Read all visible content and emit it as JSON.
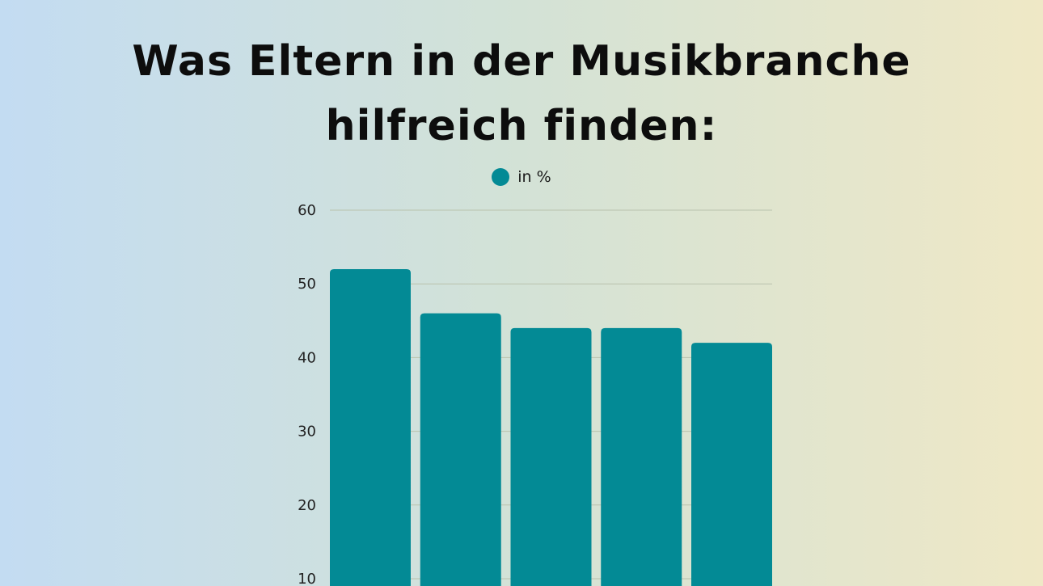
{
  "colors": {
    "bar": "#038a95",
    "grid": "#b9c2ad",
    "text": "#0d0d0d"
  },
  "chart_data": {
    "type": "bar",
    "title": [
      "Was Eltern in der Musikbranche",
      "hilfreich finden:"
    ],
    "categories": [
      "",
      "",
      "",
      "",
      ""
    ],
    "series": [
      {
        "name": "in %",
        "values": [
          52,
          46,
          44,
          44,
          42
        ]
      }
    ],
    "ylim": [
      0,
      60
    ],
    "yticks": [
      10,
      20,
      30,
      40,
      50,
      60
    ],
    "grid": true,
    "legend": "top-center"
  }
}
